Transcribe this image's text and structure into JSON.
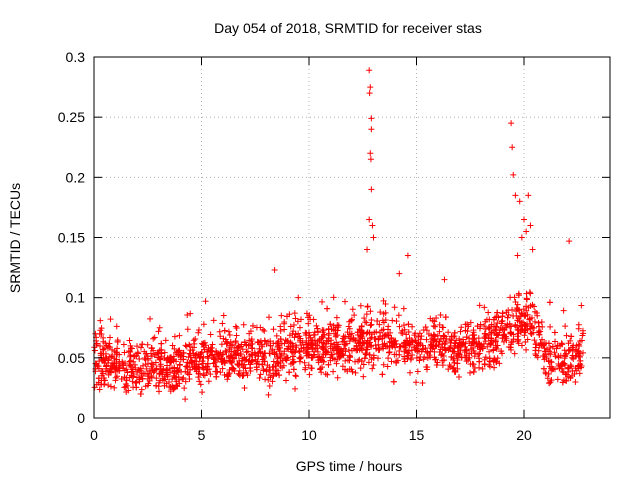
{
  "chart_data": {
    "type": "scatter",
    "title": "Day 054 of 2018, SRMTID for receiver stas",
    "xlabel": "GPS time / hours",
    "ylabel": "SRMTID / TECUs",
    "xlim": [
      0,
      24
    ],
    "ylim": [
      0,
      0.3
    ],
    "x_ticks": [
      0,
      5,
      10,
      15,
      20
    ],
    "x_tick_labels": [
      "0",
      "5",
      "10",
      "15",
      "20"
    ],
    "y_ticks": [
      0,
      0.05,
      0.1,
      0.15,
      0.2,
      0.25,
      0.3
    ],
    "y_tick_labels": [
      "0",
      "0.05",
      "0.1",
      "0.15",
      "0.2",
      "0.25",
      "0.3"
    ],
    "grid": true,
    "marker": "+",
    "color": "#ff0000",
    "series": [
      {
        "name": "SRMTID",
        "x_range": [
          0,
          22.75
        ],
        "baseline": [
          [
            0,
            0.048
          ],
          [
            2,
            0.042
          ],
          [
            4,
            0.044
          ],
          [
            6,
            0.054
          ],
          [
            8,
            0.05
          ],
          [
            9.5,
            0.06
          ],
          [
            11,
            0.058
          ],
          [
            12.5,
            0.062
          ],
          [
            13.5,
            0.065
          ],
          [
            15,
            0.06
          ],
          [
            17,
            0.058
          ],
          [
            18.5,
            0.062
          ],
          [
            19.5,
            0.075
          ],
          [
            20.2,
            0.085
          ],
          [
            21,
            0.05
          ],
          [
            22,
            0.045
          ],
          [
            22.75,
            0.055
          ]
        ],
        "spikes": [
          [
            12.8,
            0.289
          ],
          [
            12.85,
            0.275
          ],
          [
            12.82,
            0.27
          ],
          [
            12.9,
            0.249
          ],
          [
            12.9,
            0.24
          ],
          [
            12.85,
            0.22
          ],
          [
            12.88,
            0.215
          ],
          [
            12.9,
            0.19
          ],
          [
            12.8,
            0.165
          ],
          [
            12.95,
            0.16
          ],
          [
            13.0,
            0.15
          ],
          [
            12.7,
            0.14
          ],
          [
            14.6,
            0.135
          ],
          [
            14.2,
            0.12
          ],
          [
            8.4,
            0.123
          ],
          [
            19.4,
            0.245
          ],
          [
            19.45,
            0.225
          ],
          [
            19.5,
            0.202
          ],
          [
            19.6,
            0.185
          ],
          [
            20.2,
            0.185
          ],
          [
            19.8,
            0.18
          ],
          [
            20.0,
            0.165
          ],
          [
            20.3,
            0.16
          ],
          [
            20.1,
            0.155
          ],
          [
            19.9,
            0.15
          ],
          [
            22.1,
            0.147
          ],
          [
            20.4,
            0.14
          ],
          [
            19.7,
            0.135
          ],
          [
            16.3,
            0.115
          ],
          [
            9.5,
            0.1
          ]
        ]
      }
    ]
  }
}
